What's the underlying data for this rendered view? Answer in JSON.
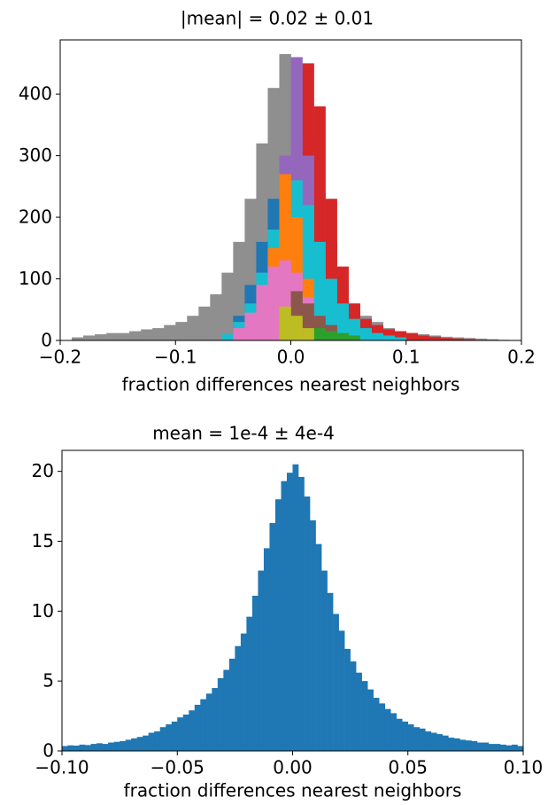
{
  "chart_data": [
    {
      "type": "histogram",
      "title": "|mean| = 0.02 ± 0.01",
      "xlabel": "fraction differences nearest neighbors",
      "bins": [
        -0.2,
        -0.19,
        -0.18,
        -0.17,
        -0.16,
        -0.15,
        -0.14,
        -0.13,
        -0.12,
        -0.11,
        -0.1,
        -0.09,
        -0.08,
        -0.07,
        -0.06,
        -0.05,
        -0.04,
        -0.03,
        -0.02,
        -0.01,
        0,
        0.01,
        0.02,
        0.03,
        0.04,
        0.05,
        0.06,
        0.07,
        0.08,
        0.09,
        0.1,
        0.11,
        0.12,
        0.13,
        0.14,
        0.15,
        0.16,
        0.17,
        0.18,
        0.19,
        0.2
      ],
      "series": [
        {
          "color": "#8f8f8f",
          "values": [
            0,
            5,
            8,
            10,
            12,
            12,
            15,
            18,
            20,
            25,
            30,
            40,
            55,
            75,
            110,
            160,
            230,
            320,
            410,
            465,
            400,
            330,
            240,
            160,
            100,
            60,
            40,
            30,
            20,
            15,
            12,
            10,
            8,
            6,
            5,
            4,
            3,
            2,
            1,
            0
          ]
        },
        {
          "color": "#d62728",
          "values": [
            0,
            0,
            0,
            0,
            0,
            0,
            0,
            0,
            0,
            0,
            0,
            0,
            0,
            0,
            0,
            0,
            0,
            0,
            20,
            80,
            250,
            450,
            380,
            230,
            120,
            60,
            35,
            25,
            18,
            15,
            12,
            8,
            6,
            4,
            3,
            2,
            0,
            0,
            0,
            0
          ]
        },
        {
          "color": "#9467bd",
          "values": [
            0,
            0,
            0,
            0,
            0,
            0,
            0,
            0,
            0,
            0,
            0,
            0,
            0,
            0,
            0,
            0,
            0,
            30,
            100,
            300,
            460,
            300,
            120,
            40,
            10,
            0,
            0,
            0,
            0,
            0,
            0,
            0,
            0,
            0,
            0,
            0,
            0,
            0,
            0,
            0
          ]
        },
        {
          "color": "#1f77b4",
          "values": [
            0,
            0,
            0,
            0,
            0,
            0,
            0,
            0,
            0,
            0,
            0,
            0,
            0,
            0,
            0,
            40,
            90,
            160,
            230,
            180,
            0,
            0,
            0,
            0,
            0,
            0,
            0,
            0,
            0,
            0,
            0,
            0,
            0,
            0,
            0,
            0,
            0,
            0,
            0,
            0
          ]
        },
        {
          "color": "#17becf",
          "values": [
            0,
            0,
            0,
            0,
            0,
            0,
            0,
            0,
            0,
            0,
            0,
            0,
            0,
            0,
            10,
            30,
            60,
            110,
            180,
            230,
            260,
            220,
            160,
            100,
            60,
            35,
            20,
            12,
            8,
            5,
            0,
            0,
            0,
            0,
            0,
            0,
            0,
            0,
            0,
            0
          ]
        },
        {
          "color": "#ff7f0e",
          "values": [
            0,
            0,
            0,
            0,
            0,
            0,
            0,
            0,
            0,
            0,
            0,
            0,
            0,
            0,
            0,
            0,
            0,
            60,
            150,
            270,
            200,
            100,
            0,
            0,
            0,
            0,
            0,
            0,
            0,
            0,
            0,
            0,
            0,
            0,
            0,
            0,
            0,
            0,
            0,
            0
          ]
        },
        {
          "color": "#e377c2",
          "values": [
            0,
            0,
            0,
            0,
            0,
            0,
            0,
            0,
            0,
            0,
            0,
            0,
            0,
            0,
            0,
            20,
            45,
            90,
            120,
            130,
            110,
            70,
            40,
            20,
            10,
            0,
            0,
            0,
            0,
            0,
            0,
            0,
            0,
            0,
            0,
            0,
            0,
            0,
            0,
            0
          ]
        },
        {
          "color": "#8c564b",
          "values": [
            0,
            0,
            0,
            0,
            0,
            0,
            0,
            0,
            0,
            0,
            0,
            0,
            0,
            0,
            0,
            0,
            0,
            0,
            0,
            0,
            80,
            60,
            40,
            25,
            0,
            0,
            0,
            0,
            0,
            0,
            0,
            0,
            0,
            0,
            0,
            0,
            0,
            0,
            0,
            0
          ]
        },
        {
          "color": "#2ca02c",
          "values": [
            0,
            0,
            0,
            0,
            0,
            0,
            0,
            0,
            0,
            0,
            0,
            0,
            0,
            0,
            0,
            0,
            0,
            0,
            0,
            0,
            0,
            0,
            20,
            15,
            12,
            8,
            0,
            0,
            0,
            0,
            0,
            0,
            0,
            0,
            0,
            0,
            0,
            0,
            0,
            0
          ]
        },
        {
          "color": "#bcbd22",
          "values": [
            0,
            0,
            0,
            0,
            0,
            0,
            0,
            0,
            0,
            0,
            0,
            0,
            0,
            0,
            0,
            0,
            0,
            0,
            0,
            55,
            40,
            20,
            0,
            0,
            0,
            0,
            0,
            0,
            0,
            0,
            0,
            0,
            0,
            0,
            0,
            0,
            0,
            0,
            0,
            0
          ]
        }
      ],
      "xlim": [
        -0.2,
        0.2
      ],
      "ylim": [
        0,
        488
      ],
      "xticks": [
        {
          "value": -0.2,
          "label": "−0.2"
        },
        {
          "value": -0.1,
          "label": "−0.1"
        },
        {
          "value": 0,
          "label": "0.0"
        },
        {
          "value": 0.1,
          "label": "0.1"
        },
        {
          "value": 0.2,
          "label": "0.2"
        }
      ],
      "yticks": [
        0,
        100,
        200,
        300,
        400
      ]
    },
    {
      "type": "histogram",
      "title": "mean = 1e-4 ± 4e-4",
      "xlabel": "fraction differences nearest neighbors",
      "bins": [
        -0.1,
        -0.0975,
        -0.095,
        -0.0925,
        -0.09,
        -0.0875,
        -0.085,
        -0.0825,
        -0.08,
        -0.0775,
        -0.075,
        -0.0725,
        -0.07,
        -0.0675,
        -0.065,
        -0.0625,
        -0.06,
        -0.0575,
        -0.055,
        -0.0525,
        -0.05,
        -0.0475,
        -0.045,
        -0.0425,
        -0.04,
        -0.0375,
        -0.035,
        -0.0325,
        -0.03,
        -0.0275,
        -0.025,
        -0.0225,
        -0.02,
        -0.0175,
        -0.015,
        -0.0125,
        -0.01,
        -0.0075,
        -0.005,
        -0.0025,
        0,
        0.0025,
        0.005,
        0.0075,
        0.01,
        0.0125,
        0.015,
        0.0175,
        0.02,
        0.0225,
        0.025,
        0.0275,
        0.03,
        0.0325,
        0.035,
        0.0375,
        0.04,
        0.0425,
        0.045,
        0.0475,
        0.05,
        0.0525,
        0.055,
        0.0575,
        0.06,
        0.0625,
        0.065,
        0.0675,
        0.07,
        0.0725,
        0.075,
        0.0775,
        0.08,
        0.0825,
        0.085,
        0.0875,
        0.09,
        0.0925,
        0.095,
        0.0975,
        0.1
      ],
      "series": [
        {
          "color": "#1f77b4",
          "values": [
            0.35,
            0.4,
            0.38,
            0.45,
            0.42,
            0.5,
            0.55,
            0.5,
            0.6,
            0.65,
            0.7,
            0.8,
            0.9,
            1.0,
            1.1,
            1.3,
            1.4,
            1.7,
            1.9,
            2.1,
            2.4,
            2.6,
            2.9,
            3.3,
            3.7,
            4.1,
            4.5,
            5.2,
            5.8,
            6.6,
            7.5,
            8.4,
            9.6,
            11.1,
            12.9,
            14.5,
            16.3,
            18.0,
            19.3,
            19.9,
            20.5,
            19.6,
            18.2,
            16.5,
            14.8,
            12.9,
            11.3,
            9.8,
            8.6,
            7.3,
            6.4,
            5.6,
            5.0,
            4.4,
            3.8,
            3.4,
            3.0,
            2.7,
            2.3,
            2.1,
            1.9,
            1.7,
            1.6,
            1.4,
            1.3,
            1.2,
            1.1,
            0.95,
            0.9,
            0.8,
            0.75,
            0.7,
            0.6,
            0.6,
            0.5,
            0.5,
            0.45,
            0.4,
            0.45,
            0.35
          ]
        }
      ],
      "xlim": [
        -0.1,
        0.1
      ],
      "ylim": [
        0,
        21.5
      ],
      "xticks": [
        {
          "value": -0.1,
          "label": "−0.10"
        },
        {
          "value": -0.05,
          "label": "−0.05"
        },
        {
          "value": 0,
          "label": "0.00"
        },
        {
          "value": 0.05,
          "label": "0.05"
        },
        {
          "value": 0.1,
          "label": "0.10"
        }
      ],
      "yticks": [
        0,
        5,
        10,
        15,
        20
      ]
    }
  ]
}
